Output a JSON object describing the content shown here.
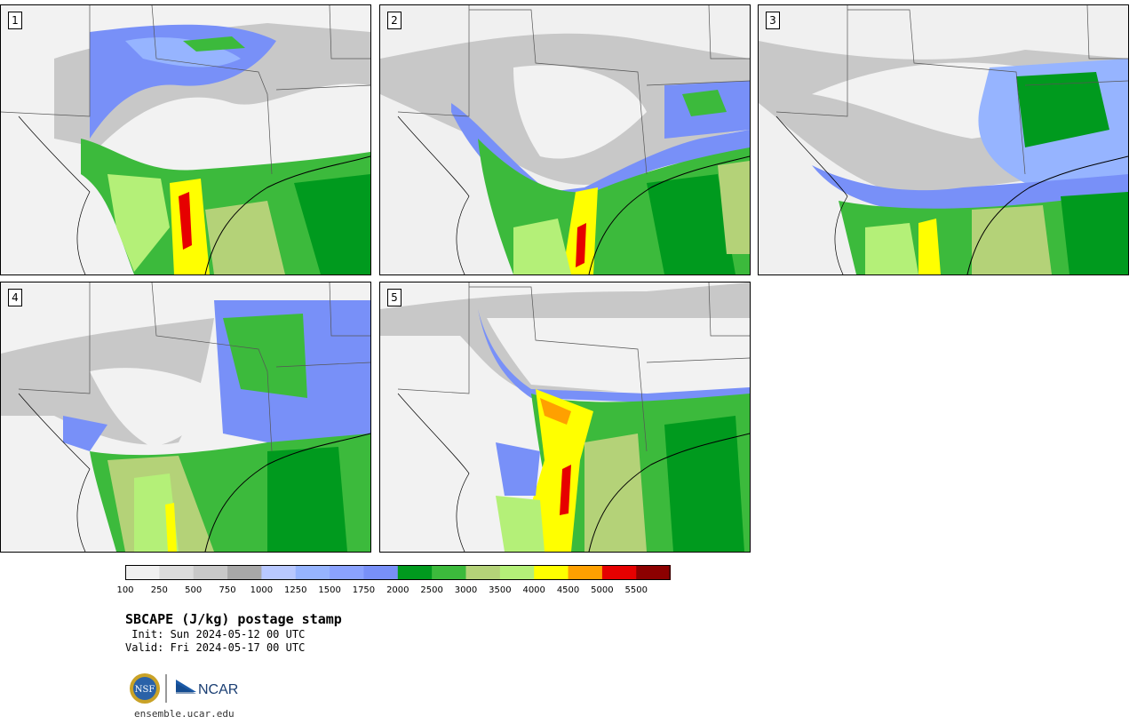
{
  "colors": {
    "levels": [
      "#f0f0f0",
      "#dcdcdc",
      "#c8c8c8",
      "#a8a8a8",
      "#b8c8ff",
      "#96b4ff",
      "#8aa2ff",
      "#7890f8",
      "#009a1e",
      "#3cba3c",
      "#b4d278",
      "#b4f078",
      "#ffff00",
      "#ffa000",
      "#e60000",
      "#8c0000"
    ],
    "state_line": "#555555",
    "coast_line": "#000000"
  },
  "panels": [
    {
      "label": "1"
    },
    {
      "label": "2"
    },
    {
      "label": "3"
    },
    {
      "label": "4"
    },
    {
      "label": "5"
    }
  ],
  "colorbar": {
    "ticks": [
      "100",
      "250",
      "500",
      "750",
      "1000",
      "1250",
      "1500",
      "1750",
      "2000",
      "2500",
      "3000",
      "3500",
      "4000",
      "4500",
      "5000",
      "5500"
    ]
  },
  "title": "SBCAPE (J/kg) postage stamp",
  "init": " Init: Sun 2024-05-12 00 UTC",
  "valid": "Valid: Fri 2024-05-17 00 UTC",
  "logos": {
    "nsf_text": "NSF",
    "ncar_text": "NCAR"
  },
  "website": "ensemble.ucar.edu"
}
